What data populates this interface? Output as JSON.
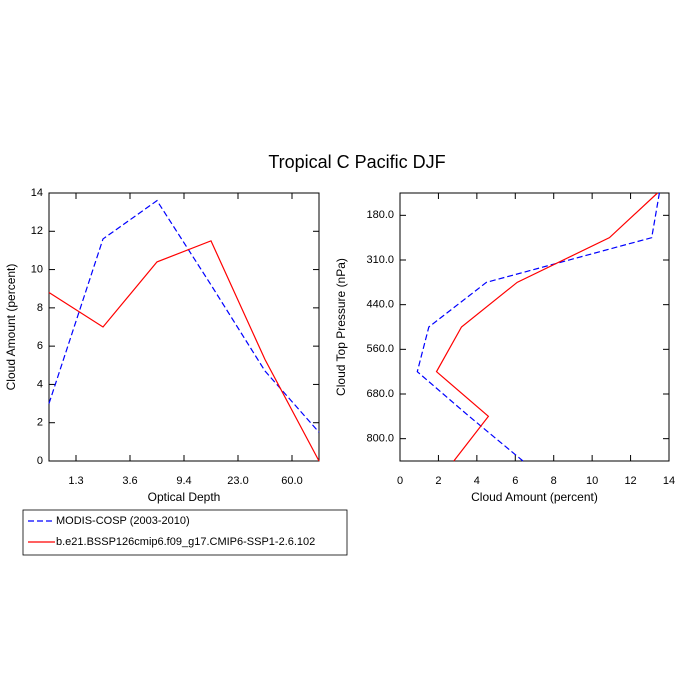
{
  "title": "Tropical C Pacific DJF",
  "chart_data": [
    {
      "type": "line",
      "orientation": "vertical",
      "xlabel": "Optical Depth",
      "ylabel": "Cloud Amount (percent)",
      "x": [
        0,
        1,
        2,
        3,
        4,
        5
      ],
      "xlim": [
        0,
        5
      ],
      "xticks": [
        {
          "value": 0.5,
          "label": "1.3"
        },
        {
          "value": 1.5,
          "label": "3.6"
        },
        {
          "value": 2.5,
          "label": "9.4"
        },
        {
          "value": 3.5,
          "label": "23.0"
        },
        {
          "value": 4.5,
          "label": "60.0"
        }
      ],
      "ylim": [
        0,
        14
      ],
      "yticks": [
        0,
        2,
        4,
        6,
        8,
        10,
        12,
        14
      ],
      "series": [
        {
          "name": "MODIS-COSP (2003-2010)",
          "color": "#0000ff",
          "line_style": "dashed",
          "values": [
            3.0,
            11.6,
            13.6,
            9.2,
            4.7,
            1.5
          ]
        },
        {
          "name": "b.e21.BSSP126cmip6.f09_g17.CMIP6-SSP1-2.6.102",
          "color": "#ff0000",
          "line_style": "solid",
          "values": [
            8.8,
            7.0,
            10.4,
            11.5,
            5.3,
            0
          ]
        }
      ]
    },
    {
      "type": "line",
      "orientation": "horizontal",
      "xlabel": "Cloud Amount (percent)",
      "ylabel": "Cloud Top Pressure (nPa)",
      "y": [
        0,
        1,
        2,
        3,
        4,
        5,
        6
      ],
      "ylim": [
        6,
        0
      ],
      "yticks": [
        {
          "value": 0.5,
          "label": "180.0"
        },
        {
          "value": 1.5,
          "label": "310.0"
        },
        {
          "value": 2.5,
          "label": "440.0"
        },
        {
          "value": 3.5,
          "label": "560.0"
        },
        {
          "value": 4.5,
          "label": "680.0"
        },
        {
          "value": 5.5,
          "label": "800.0"
        }
      ],
      "xlim": [
        0,
        14
      ],
      "xticks": [
        0,
        2,
        4,
        6,
        8,
        10,
        12,
        14
      ],
      "series": [
        {
          "color": "#0000ff",
          "line_style": "dashed",
          "values": [
            13.5,
            13.1,
            4.5,
            1.5,
            0.9,
            3.6,
            6.4
          ]
        },
        {
          "color": "#ff0000",
          "line_style": "solid",
          "values": [
            13.4,
            10.9,
            6.1,
            3.2,
            1.9,
            4.6,
            2.8
          ]
        }
      ]
    }
  ]
}
